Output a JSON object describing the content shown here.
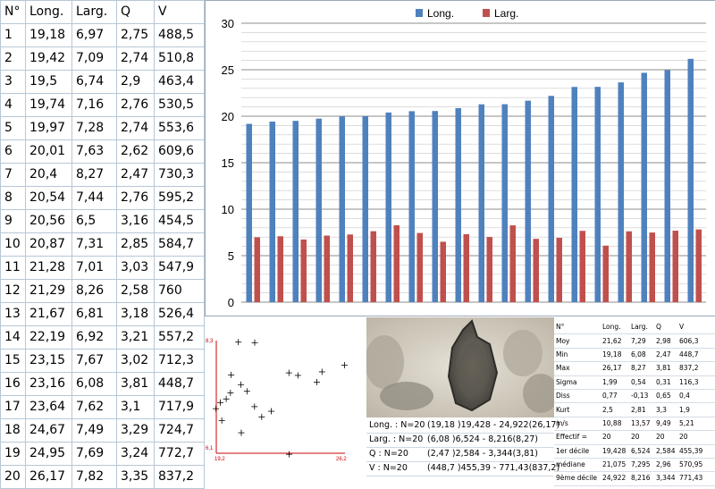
{
  "left_table": {
    "headers": [
      "N°",
      "Long.",
      "Larg.",
      "Q",
      "V"
    ],
    "rows": [
      [
        "1",
        "19,18",
        "6,97",
        "2,75",
        "488,5"
      ],
      [
        "2",
        "19,42",
        "7,09",
        "2,74",
        "510,8"
      ],
      [
        "3",
        "19,5",
        "6,74",
        "2,9",
        "463,4"
      ],
      [
        "4",
        "19,74",
        "7,16",
        "2,76",
        "530,5"
      ],
      [
        "5",
        "19,97",
        "7,28",
        "2,74",
        "553,6"
      ],
      [
        "6",
        "20,01",
        "7,63",
        "2,62",
        "609,6"
      ],
      [
        "7",
        "20,4",
        "8,27",
        "2,47",
        "730,3"
      ],
      [
        "8",
        "20,54",
        "7,44",
        "2,76",
        "595,2"
      ],
      [
        "9",
        "20,56",
        "6,5",
        "3,16",
        "454,5"
      ],
      [
        "10",
        "20,87",
        "7,31",
        "2,85",
        "584,7"
      ],
      [
        "11",
        "21,28",
        "7,01",
        "3,03",
        "547,9"
      ],
      [
        "12",
        "21,29",
        "8,26",
        "2,58",
        "760"
      ],
      [
        "13",
        "21,67",
        "6,81",
        "3,18",
        "526,4"
      ],
      [
        "14",
        "22,19",
        "6,92",
        "3,21",
        "557,2"
      ],
      [
        "15",
        "23,15",
        "7,67",
        "3,02",
        "712,3"
      ],
      [
        "16",
        "23,16",
        "6,08",
        "3,81",
        "448,7"
      ],
      [
        "17",
        "23,64",
        "7,62",
        "3,1",
        "717,9"
      ],
      [
        "18",
        "24,67",
        "7,49",
        "3,29",
        "724,7"
      ],
      [
        "19",
        "24,95",
        "7,69",
        "3,24",
        "772,7"
      ],
      [
        "20",
        "26,17",
        "7,82",
        "3,35",
        "837,2"
      ]
    ]
  },
  "chart_data": [
    {
      "type": "bar",
      "categories": [
        "1",
        "2",
        "3",
        "4",
        "5",
        "6",
        "7",
        "8",
        "9",
        "10",
        "11",
        "12",
        "13",
        "14",
        "15",
        "16",
        "17",
        "18",
        "19",
        "20"
      ],
      "series": [
        {
          "name": "Long.",
          "color": "#4f81bd",
          "values": [
            19.18,
            19.42,
            19.5,
            19.74,
            19.97,
            20.01,
            20.4,
            20.54,
            20.56,
            20.87,
            21.28,
            21.29,
            21.67,
            22.19,
            23.15,
            23.16,
            23.64,
            24.67,
            24.95,
            26.17
          ]
        },
        {
          "name": "Larg.",
          "color": "#c0504d",
          "values": [
            6.97,
            7.09,
            6.74,
            7.16,
            7.28,
            7.63,
            8.27,
            7.44,
            6.5,
            7.31,
            7.01,
            8.26,
            6.81,
            6.92,
            7.67,
            6.08,
            7.62,
            7.49,
            7.69,
            7.82
          ]
        }
      ],
      "ylim": [
        0,
        30
      ],
      "yticks": [
        "0",
        "5",
        "10",
        "15",
        "20",
        "25",
        "30"
      ],
      "grid": true,
      "legend": "top-center"
    },
    {
      "type": "scatter",
      "x_label_min": "19,2",
      "x_label_max": "26,2",
      "y_label_min": "6,1",
      "y_label_max": "8,3",
      "xlim": [
        19.2,
        26.2
      ],
      "ylim": [
        6.1,
        8.3
      ],
      "marker": "+",
      "points": [
        [
          19.18,
          6.97
        ],
        [
          19.42,
          7.09
        ],
        [
          19.5,
          6.74
        ],
        [
          19.74,
          7.16
        ],
        [
          19.97,
          7.28
        ],
        [
          20.01,
          7.63
        ],
        [
          20.4,
          8.27
        ],
        [
          20.54,
          7.44
        ],
        [
          20.56,
          6.5
        ],
        [
          20.87,
          7.31
        ],
        [
          21.28,
          7.01
        ],
        [
          21.29,
          8.26
        ],
        [
          21.67,
          6.81
        ],
        [
          22.19,
          6.92
        ],
        [
          23.15,
          7.67
        ],
        [
          23.16,
          6.08
        ],
        [
          23.64,
          7.62
        ],
        [
          24.67,
          7.49
        ],
        [
          24.95,
          7.69
        ],
        [
          26.17,
          7.82
        ]
      ],
      "axis_color": "#cc0000"
    }
  ],
  "summary": [
    {
      "label": "Long. : N=20",
      "value": "(19,18 )19,428 - 24,922(26,17)"
    },
    {
      "label": "Larg. : N=20",
      "value": "(6,08 )6,524 - 8,216(8,27)"
    },
    {
      "label": "Q : N=20",
      "value": "(2,47 )2,584 - 3,344(3,81)"
    },
    {
      "label": "V : N=20",
      "value": "(448,7 )455,39 - 771,43(837,2)"
    }
  ],
  "stats": {
    "headers": [
      "N°",
      "Long.",
      "Larg.",
      "Q",
      "V"
    ],
    "rows": [
      [
        "Moy",
        "21,62",
        "7,29",
        "2,98",
        "606,3"
      ],
      [
        "Min",
        "19,18",
        "6,08",
        "2,47",
        "448,7"
      ],
      [
        "Max",
        "26,17",
        "8,27",
        "3,81",
        "837,2"
      ],
      [
        "Sigma",
        "1,99",
        "0,54",
        "0,31",
        "116,3"
      ],
      [
        "Diss",
        "0,77",
        "-0,13",
        "0,65",
        "0,4"
      ],
      [
        "Kurt",
        "2,5",
        "2,81",
        "3,3",
        "1,9"
      ],
      [
        "m/s",
        "10,88",
        "13,57",
        "9,49",
        "5,21"
      ],
      [
        "Effectif =",
        "20",
        "20",
        "20",
        "20"
      ],
      [
        "1er décile",
        "19,428",
        "6,524",
        "2,584",
        "455,39"
      ],
      [
        "médiane",
        "21,075",
        "7,295",
        "2,96",
        "570,95"
      ],
      [
        "9ème décile",
        "24,922",
        "8,216",
        "3,344",
        "771,43"
      ]
    ]
  }
}
